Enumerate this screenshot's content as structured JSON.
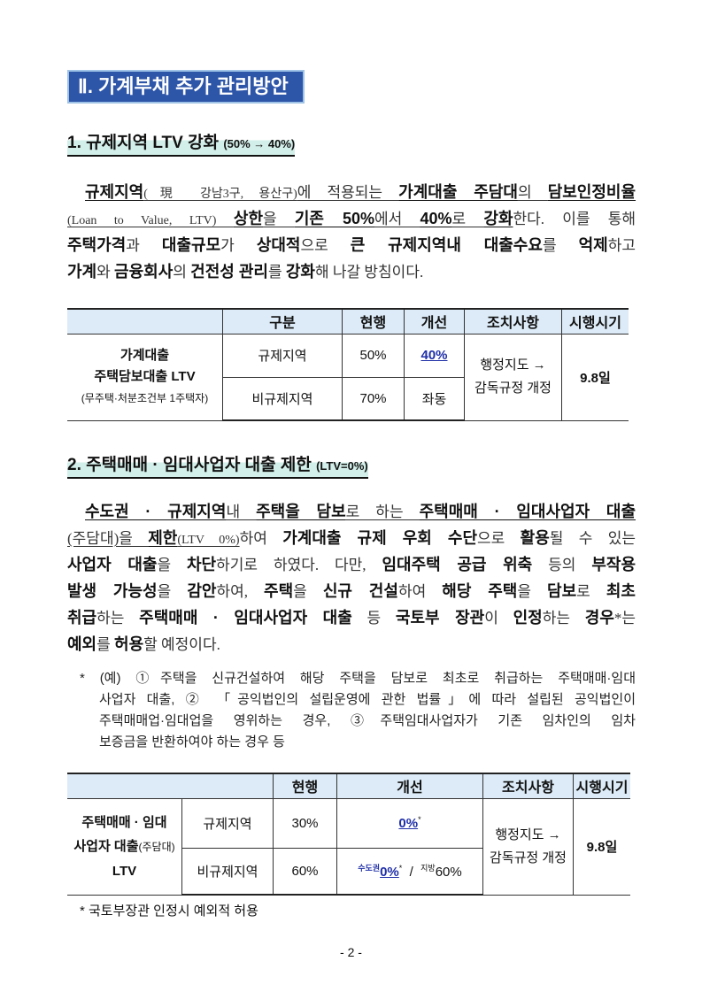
{
  "chapter_title": "Ⅱ. 가계부채 추가 관리방안",
  "section1": {
    "title": "1. 규제지역 LTV 강화",
    "title_suffix": "(50% → 40%)",
    "paragraph": [
      [
        [
          "규제지역",
          "bu"
        ],
        [
          "(現 강남3구, 용산구)",
          "su"
        ],
        [
          "에 적용되는 ",
          "nu"
        ],
        [
          "가계대출 주담대",
          "bu"
        ],
        [
          "의 ",
          "nu"
        ],
        [
          "담보인정비율",
          "bu"
        ]
      ],
      [
        [
          "(Loan to Value, LTV) ",
          "su"
        ],
        [
          "상한",
          "bu"
        ],
        [
          "을 ",
          "nu"
        ],
        [
          "기존 50%",
          "bu"
        ],
        [
          "에서 ",
          "nu"
        ],
        [
          "40%",
          "bu"
        ],
        [
          "로 ",
          "nu"
        ],
        [
          "강화",
          "bu"
        ],
        [
          "한다. 이를 통해",
          "n"
        ]
      ],
      [
        [
          "주택가격",
          "b"
        ],
        [
          "과 ",
          "n"
        ],
        [
          "대출규모",
          "b"
        ],
        [
          "가 ",
          "n"
        ],
        [
          "상대적",
          "b"
        ],
        [
          "으로 ",
          "n"
        ],
        [
          "큰 규제지역내 대출수요",
          "b"
        ],
        [
          "를 ",
          "n"
        ],
        [
          "억제",
          "b"
        ],
        [
          "하고",
          "n"
        ]
      ],
      [
        [
          "가계",
          "b"
        ],
        [
          "와 ",
          "n"
        ],
        [
          "금융회사",
          "b"
        ],
        [
          "의 ",
          "n"
        ],
        [
          "건전성 관리",
          "b"
        ],
        [
          "를 ",
          "n"
        ],
        [
          "강화",
          "b"
        ],
        [
          "해 나갈 방침이다.",
          "n"
        ]
      ]
    ],
    "table": {
      "headers": [
        "구분",
        "현행",
        "개선",
        "조치사항",
        "시행시기"
      ],
      "row_label": [
        "가계대출",
        "주택담보대출 LTV",
        "(무주택·처분조건부 1주택자)"
      ],
      "rows": [
        {
          "region": "규제지역",
          "current": "50%",
          "improved": "40%"
        },
        {
          "region": "비규제지역",
          "current": "70%",
          "improved": "좌동"
        }
      ],
      "action": [
        "행정지도 →",
        "감독규정 개정"
      ],
      "date": "9.8일"
    }
  },
  "section2": {
    "title": "2. 주택매매 · 임대사업자 대출 제한",
    "title_suffix": "(LTV=0%)",
    "paragraph": [
      [
        [
          "수도권 · 규제지역",
          "bu"
        ],
        [
          "내 ",
          "nu"
        ],
        [
          "주택을 담보",
          "bu"
        ],
        [
          "로 하는 ",
          "nu"
        ],
        [
          "주택매매 · 임대사업자 대출",
          "bu"
        ]
      ],
      [
        [
          "(주담대)을 ",
          "nu"
        ],
        [
          "제한",
          "bu"
        ],
        [
          "(LTV 0%)",
          "su"
        ],
        [
          "하여 ",
          "n"
        ],
        [
          "가계대출 규제 우회 수단",
          "b"
        ],
        [
          "으로 ",
          "n"
        ],
        [
          "활용",
          "b"
        ],
        [
          "될 수 있는",
          "n"
        ]
      ],
      [
        [
          "사업자 대출",
          "b"
        ],
        [
          "을 ",
          "n"
        ],
        [
          "차단",
          "b"
        ],
        [
          "하기로 하였다. 다만, ",
          "n"
        ],
        [
          "임대주택 공급 위축",
          "b"
        ],
        [
          " 등의 ",
          "n"
        ],
        [
          "부작용",
          "b"
        ]
      ],
      [
        [
          "발생 가능성",
          "b"
        ],
        [
          "을 ",
          "n"
        ],
        [
          "감안",
          "b"
        ],
        [
          "하여, ",
          "n"
        ],
        [
          "주택",
          "b"
        ],
        [
          "을 ",
          "n"
        ],
        [
          "신규 건설",
          "b"
        ],
        [
          "하여 ",
          "n"
        ],
        [
          "해당 주택",
          "b"
        ],
        [
          "을 ",
          "n"
        ],
        [
          "담보",
          "b"
        ],
        [
          "로 ",
          "n"
        ],
        [
          "최초",
          "b"
        ]
      ],
      [
        [
          "취급",
          "b"
        ],
        [
          "하는 ",
          "n"
        ],
        [
          "주택매매 · 임대사업자 대출",
          "b"
        ],
        [
          " 등 ",
          "n"
        ],
        [
          "국토부 장관",
          "b"
        ],
        [
          "이 ",
          "n"
        ],
        [
          "인정",
          "b"
        ],
        [
          "하는 ",
          "n"
        ],
        [
          "경우",
          "b"
        ],
        [
          "*는",
          "n"
        ]
      ],
      [
        [
          "예외",
          "b"
        ],
        [
          "를 ",
          "n"
        ],
        [
          "허용",
          "b"
        ],
        [
          "할 예정이다.",
          "n"
        ]
      ]
    ],
    "footnote_lines": [
      "* (예) ①주택을 신규건설하여 해당 주택을 담보로 최초로 취급하는 주택매매·임대",
      "사업자 대출, ② 「공익법인의 설립운영에 관한 법률」에 따라 설립된 공익법인이",
      "주택매매업·임대업을 영위하는 경우, ③주택임대사업자가 기존 임차인의 임차",
      "보증금을 반환하여야 하는 경우 등"
    ],
    "table": {
      "headers": [
        "현행",
        "개선",
        "조치사항",
        "시행시기"
      ],
      "row_label": [
        "주택매매 · 임대",
        "사업자 대출",
        "(주담대)",
        "LTV"
      ],
      "rows": [
        {
          "region": "규제지역",
          "current": "30%",
          "improved": "0%",
          "improved_mark": "*"
        },
        {
          "region": "비규제지역",
          "current": "60%",
          "metro_label": "수도권",
          "metro_value": "0%",
          "metro_mark": "*",
          "sep": "/",
          "local_label": "지방",
          "local_value": "60%"
        }
      ],
      "action": [
        "행정지도 →",
        "감독규정 개정"
      ],
      "date": "9.8일"
    },
    "table_note": "* 국토부장관 인정시 예외적 허용"
  },
  "page_number": "- 2 -",
  "colors": {
    "chapter_bg": "#2d55a8",
    "header_bg": "#dcebf7",
    "highlight": "#1f2fa8",
    "section_highlight": "#d3efe9"
  }
}
